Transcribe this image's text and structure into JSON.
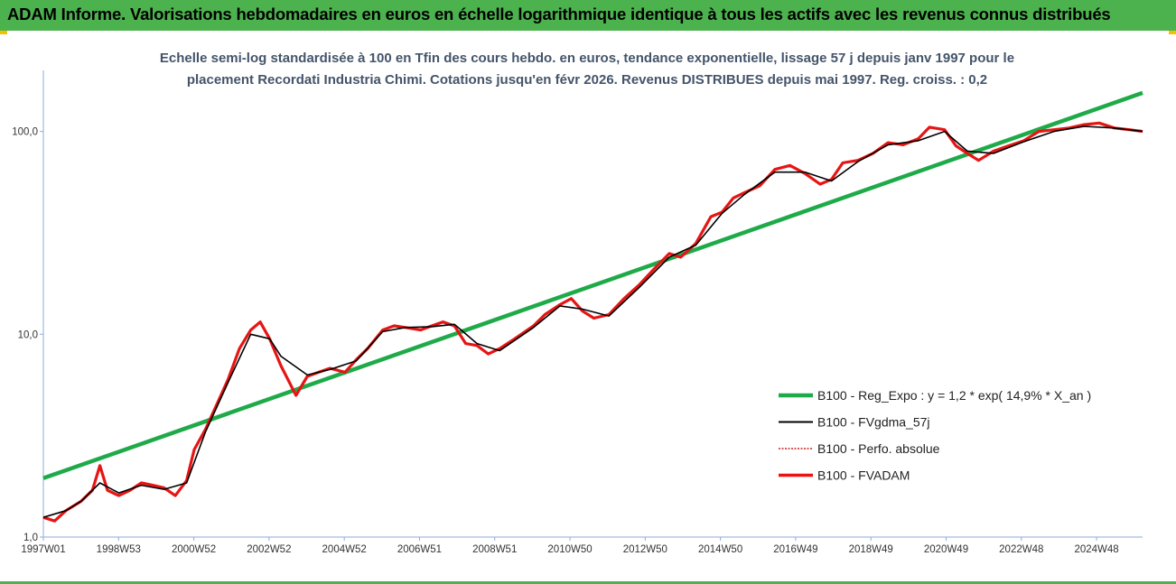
{
  "header": {
    "title": "ADAM Informe. Valorisations hebdomadaires en euros en échelle logarithmique identique à tous les actifs avec les revenus connus distribués"
  },
  "colors": {
    "header_bg": "#4cb24e",
    "regression": "#1faa4a",
    "fvadam": "#ee1111",
    "fvgdma": "#000000",
    "perfo": "#cc2222",
    "subtitle": "#44546a"
  },
  "chart_data": {
    "type": "line",
    "title_line1": "Echelle semi-log standardisée à 100 en Tfin des cours hebdo. en euros, tendance exponentielle, lissage 57 j depuis janv 1997 pour le",
    "title_line2": "placement Recordati Industria Chimi. Cotations jusqu'en févr 2026. Revenus DISTRIBUES depuis mai 1997. Reg. croiss. : 0,2",
    "yscale": "log",
    "ylim": [
      1,
      200
    ],
    "yticks": [
      "1,0",
      "10,0",
      "100,0"
    ],
    "xlim": [
      1997.0,
      2026.15
    ],
    "xticks": [
      "1997W01",
      "1998W53",
      "2000W52",
      "2002W52",
      "2004W52",
      "2006W51",
      "2008W51",
      "2010W50",
      "2012W50",
      "2014W50",
      "2016W49",
      "2018W49",
      "2020W49",
      "2022W48",
      "2024W48"
    ],
    "legend_position": "bottom-right",
    "legend": [
      "B100 - Reg_Expo : y = 1,2 * exp( 14,9% *  X_an )",
      "B100 - FVgdma_57j",
      "B100 - Perfo. absolue",
      "B100 - FVADAM"
    ],
    "series": [
      {
        "name": "B100 - Reg_Expo : y = 1,2 * exp( 14,9% *  X_an )",
        "x": [
          1997.0,
          2026.15
        ],
        "values": [
          1.95,
          155
        ]
      },
      {
        "name": "B100 - FVADAM",
        "x": [
          1997.0,
          1997.3,
          1997.6,
          1998.0,
          1998.3,
          1998.5,
          1998.7,
          1999.0,
          1999.3,
          1999.6,
          1999.9,
          2000.2,
          2000.5,
          2000.8,
          2001.0,
          2001.3,
          2001.6,
          2001.9,
          2002.2,
          2002.5,
          2002.75,
          2003.0,
          2003.3,
          2003.7,
          2004.0,
          2004.3,
          2004.6,
          2005.0,
          2005.3,
          2005.6,
          2006.0,
          2006.3,
          2006.6,
          2007.0,
          2007.3,
          2007.6,
          2007.9,
          2008.2,
          2008.5,
          2008.8,
          2009.1,
          2009.5,
          2010.0,
          2010.3,
          2010.7,
          2011.0,
          2011.3,
          2011.6,
          2012.0,
          2012.4,
          2012.8,
          2013.2,
          2013.6,
          2013.9,
          2014.3,
          2014.7,
          2015.0,
          2015.3,
          2015.6,
          2016.0,
          2016.4,
          2016.8,
          2017.2,
          2017.6,
          2017.9,
          2018.2,
          2018.6,
          2019.0,
          2019.4,
          2019.8,
          2020.2,
          2020.5,
          2020.9,
          2021.2,
          2021.5,
          2021.8,
          2022.2,
          2022.6,
          2023.0,
          2023.4,
          2023.8,
          2024.2,
          2024.6,
          2025.0,
          2025.4,
          2025.8,
          2026.15
        ],
        "values": [
          1.25,
          1.2,
          1.35,
          1.5,
          1.7,
          2.25,
          1.7,
          1.6,
          1.7,
          1.85,
          1.8,
          1.75,
          1.6,
          1.9,
          2.7,
          3.4,
          4.5,
          6.0,
          8.5,
          10.5,
          11.5,
          9.5,
          7.0,
          5.0,
          6.2,
          6.5,
          6.8,
          6.5,
          7.5,
          8.5,
          10.5,
          11.0,
          10.8,
          10.5,
          11.0,
          11.5,
          11.0,
          9.0,
          8.8,
          8.0,
          8.5,
          9.5,
          11.0,
          12.5,
          14.0,
          15.0,
          13.0,
          12.0,
          12.5,
          15.0,
          17.5,
          21.0,
          25.0,
          24.0,
          28.0,
          38.0,
          40.0,
          47.0,
          50.0,
          54.0,
          65.0,
          68.0,
          62.0,
          55.0,
          58.0,
          70.0,
          72.0,
          78.0,
          88.0,
          86.0,
          92.0,
          105.0,
          102.0,
          85.0,
          78.0,
          72.0,
          80.0,
          85.0,
          90.0,
          100.0,
          102.0,
          104.0,
          108.0,
          110.0,
          104.0,
          102.0,
          100.0
        ]
      },
      {
        "name": "B100 - FVgdma_57j",
        "x": [
          1997.0,
          1997.6,
          1998.0,
          1998.5,
          1999.0,
          1999.6,
          2000.2,
          2000.8,
          2001.3,
          2001.9,
          2002.5,
          2003.0,
          2003.3,
          2004.0,
          2004.6,
          2005.3,
          2006.0,
          2006.6,
          2007.3,
          2007.9,
          2008.5,
          2009.1,
          2010.0,
          2010.7,
          2011.3,
          2012.0,
          2012.8,
          2013.6,
          2014.3,
          2015.0,
          2015.6,
          2016.4,
          2017.2,
          2017.9,
          2018.6,
          2019.4,
          2020.2,
          2020.9,
          2021.5,
          2022.2,
          2023.0,
          2023.8,
          2024.6,
          2025.4,
          2026.15
        ],
        "values": [
          1.25,
          1.35,
          1.5,
          1.85,
          1.65,
          1.8,
          1.72,
          1.85,
          3.3,
          5.8,
          10.0,
          9.5,
          7.8,
          6.3,
          6.7,
          7.4,
          10.3,
          10.8,
          10.9,
          11.2,
          9.0,
          8.3,
          10.8,
          13.8,
          13.3,
          12.3,
          17.0,
          24.0,
          27.5,
          39.5,
          49.0,
          63.0,
          63.0,
          57.0,
          71.0,
          86.0,
          90.0,
          100.0,
          80.0,
          78.0,
          89.0,
          100.0,
          106.0,
          104.0,
          100.0
        ]
      }
    ]
  }
}
